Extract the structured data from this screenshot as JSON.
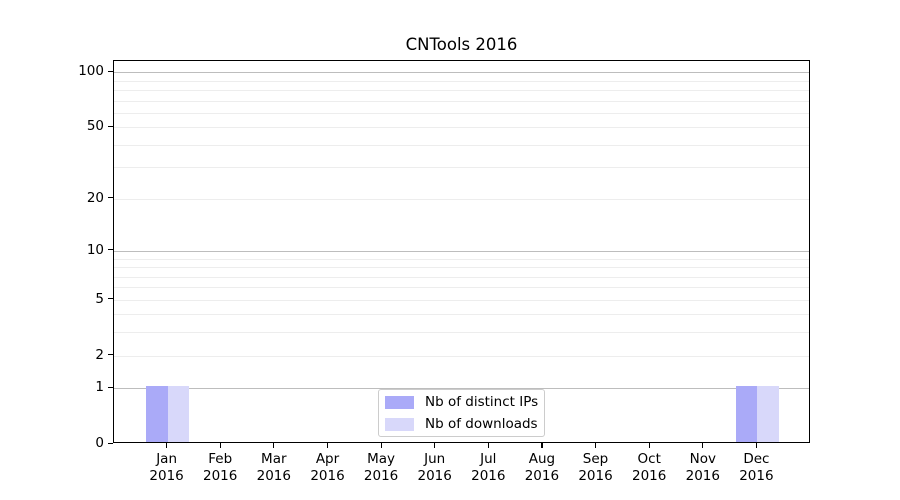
{
  "chart_data": {
    "type": "bar",
    "title": "CNTools 2016",
    "categories": [
      "Jan 2016",
      "Feb 2016",
      "Mar 2016",
      "Apr 2016",
      "May 2016",
      "Jun 2016",
      "Jul 2016",
      "Aug 2016",
      "Sep 2016",
      "Oct 2016",
      "Nov 2016",
      "Dec 2016"
    ],
    "xaxis": {
      "months": [
        "Jan",
        "Feb",
        "Mar",
        "Apr",
        "May",
        "Jun",
        "Jul",
        "Aug",
        "Sep",
        "Oct",
        "Nov",
        "Dec"
      ],
      "year_line": "2016"
    },
    "yaxis": {
      "scale": "log(v+1)",
      "ymax": 115,
      "ylim": [
        0,
        115
      ],
      "tick_labels": [
        0,
        1,
        2,
        5,
        10,
        20,
        50,
        100
      ],
      "decade_gridlines": [
        1,
        10,
        100
      ],
      "light_gridlines": [
        2,
        3,
        4,
        5,
        6,
        7,
        8,
        9,
        20,
        30,
        40,
        50,
        60,
        70,
        80,
        90
      ]
    },
    "series": [
      {
        "name": "Nb of distinct IPs",
        "color": "#aaaaf8",
        "values": [
          1,
          0,
          0,
          0,
          0,
          0,
          0,
          0,
          0,
          0,
          0,
          1
        ]
      },
      {
        "name": "Nb of downloads",
        "color": "#d8d8fa",
        "values": [
          1,
          0,
          0,
          0,
          0,
          0,
          0,
          0,
          0,
          0,
          0,
          1
        ]
      }
    ],
    "legend_position": "lower center",
    "grid": true
  },
  "colors": {
    "background": "#ffffff",
    "spine": "#000000",
    "decade_grid": "#bdbdbd",
    "light_grid": "#ededed",
    "legend_border": "#cccccc",
    "text": "#000000"
  }
}
